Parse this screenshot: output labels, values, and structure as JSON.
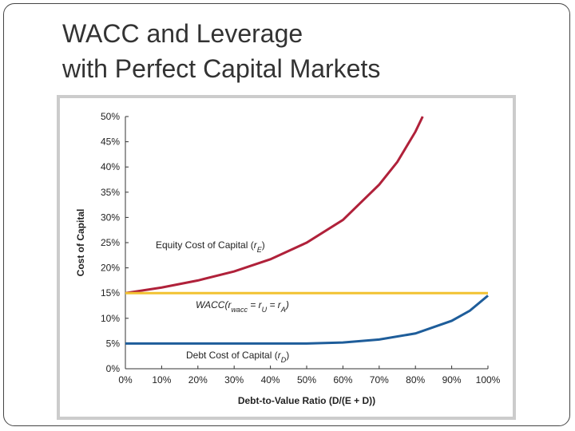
{
  "slide": {
    "title_lines": [
      "WACC and Leverage",
      "with Perfect Capital Markets"
    ]
  },
  "chart_data": {
    "type": "line",
    "x_label": "Debt-to-Value Ratio (D/(E + D))",
    "y_label": "Cost of Capital",
    "xlim": [
      0,
      100
    ],
    "ylim": [
      0,
      50
    ],
    "xticks": [
      {
        "value": 0,
        "label": "0%"
      },
      {
        "value": 10,
        "label": "10%"
      },
      {
        "value": 20,
        "label": "20%"
      },
      {
        "value": 30,
        "label": "30%"
      },
      {
        "value": 40,
        "label": "40%"
      },
      {
        "value": 50,
        "label": "50%"
      },
      {
        "value": 60,
        "label": "60%"
      },
      {
        "value": 70,
        "label": "70%"
      },
      {
        "value": 80,
        "label": "80%"
      },
      {
        "value": 90,
        "label": "90%"
      },
      {
        "value": 100,
        "label": "100%"
      }
    ],
    "yticks": [
      {
        "value": 0,
        "label": "0%"
      },
      {
        "value": 5,
        "label": "5%"
      },
      {
        "value": 10,
        "label": "10%"
      },
      {
        "value": 15,
        "label": "15%"
      },
      {
        "value": 20,
        "label": "20%"
      },
      {
        "value": 25,
        "label": "25%"
      },
      {
        "value": 30,
        "label": "30%"
      },
      {
        "value": 35,
        "label": "35%"
      },
      {
        "value": 40,
        "label": "40%"
      },
      {
        "value": 45,
        "label": "45%"
      },
      {
        "value": 50,
        "label": "50%"
      }
    ],
    "series": [
      {
        "name": "Equity Cost of Capital",
        "color": "#b0213a",
        "x": [
          0,
          10,
          20,
          30,
          40,
          50,
          60,
          70,
          75,
          80,
          82
        ],
        "values": [
          15,
          16.1,
          17.5,
          19.3,
          21.7,
          25,
          29.5,
          36.5,
          41,
          47,
          50
        ]
      },
      {
        "name": "WACC",
        "color": "#f2c231",
        "x": [
          0,
          100
        ],
        "values": [
          15,
          15
        ]
      },
      {
        "name": "Debt Cost of Capital",
        "color": "#1e5d9a",
        "x": [
          0,
          10,
          20,
          30,
          40,
          50,
          60,
          70,
          80,
          90,
          95,
          100
        ],
        "values": [
          5,
          5,
          5,
          5,
          5,
          5,
          5.2,
          5.8,
          7,
          9.5,
          11.5,
          14.5
        ]
      }
    ],
    "annotations": [
      {
        "segments": [
          {
            "text": "Equity Cost of Capital ("
          },
          {
            "text": "r",
            "italic": true
          },
          {
            "text": "E",
            "sub": true,
            "italic": true
          },
          {
            "text": ")"
          }
        ]
      },
      {
        "segments": [
          {
            "text": "WACC(r",
            "italic": true
          },
          {
            "text": "wacc",
            "sub": true,
            "italic": true
          },
          {
            "text": " = r",
            "italic": true
          },
          {
            "text": "U",
            "sub": true,
            "italic": true
          },
          {
            "text": " = r",
            "italic": true
          },
          {
            "text": "A",
            "sub": true,
            "italic": true
          },
          {
            "text": ")",
            "italic": true
          }
        ]
      },
      {
        "segments": [
          {
            "text": "Debt Cost of Capital ("
          },
          {
            "text": "r",
            "italic": true
          },
          {
            "text": "D",
            "sub": true,
            "italic": true
          },
          {
            "text": ")"
          }
        ]
      }
    ]
  }
}
